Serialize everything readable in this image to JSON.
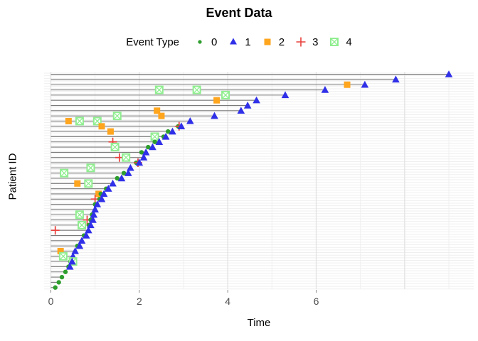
{
  "title": "Event Data",
  "legend": {
    "title": "Event Type",
    "items": [
      {
        "label": "0",
        "marker": "filled-circle"
      },
      {
        "label": "1",
        "marker": "filled-triangle"
      },
      {
        "label": "2",
        "marker": "filled-square"
      },
      {
        "label": "3",
        "marker": "plus-cross"
      },
      {
        "label": "4",
        "marker": "crossed-open-square"
      }
    ]
  },
  "chart_data": {
    "type": "scatter",
    "title": "Event Data",
    "xlabel": "Time",
    "ylabel": "Patient ID",
    "x_ticks": [
      0,
      2,
      4,
      6
    ],
    "xlim": [
      -0.15,
      9.55
    ],
    "grid": "on",
    "legend_position": "top-center",
    "y_axis_tick_labels": "none",
    "description": "Swimmer plot: one horizontal gray segment per patient from time 0 to last event; rows sorted by follow-up time (longest on top). Terminal marker is event type 1 (blue triangle) except bottom rows ending with type 0 (green dot).",
    "colors": {
      "type0": "#2E9E2E",
      "type1": "#3030E8",
      "type2": "#FFA51E",
      "type3": "#E8413C",
      "type4": "#90EE90",
      "row_line": "#7a7a7a",
      "grid_major": "#E2E2E2",
      "grid_minor": "#EFEFEF",
      "axis_text": "#4d4d4d"
    },
    "patients": [
      {
        "end": 9.0,
        "end_type": 1,
        "events": []
      },
      {
        "end": 7.8,
        "end_type": 1,
        "events": []
      },
      {
        "end": 7.1,
        "end_type": 1,
        "events": [
          [
            2,
            6.7
          ]
        ]
      },
      {
        "end": 6.2,
        "end_type": 1,
        "events": [
          [
            4,
            2.45
          ],
          [
            4,
            3.3
          ]
        ]
      },
      {
        "end": 5.3,
        "end_type": 1,
        "events": [
          [
            4,
            3.95
          ]
        ]
      },
      {
        "end": 4.65,
        "end_type": 1,
        "events": [
          [
            2,
            3.75
          ]
        ]
      },
      {
        "end": 4.45,
        "end_type": 1,
        "events": []
      },
      {
        "end": 4.3,
        "end_type": 1,
        "events": [
          [
            2,
            2.4
          ]
        ]
      },
      {
        "end": 3.7,
        "end_type": 1,
        "events": [
          [
            4,
            1.5
          ],
          [
            2,
            2.5
          ]
        ]
      },
      {
        "end": 3.15,
        "end_type": 1,
        "events": [
          [
            2,
            0.4
          ],
          [
            4,
            0.65
          ],
          [
            4,
            1.05
          ]
        ]
      },
      {
        "end": 2.95,
        "end_type": 1,
        "events": [
          [
            2,
            1.15
          ],
          [
            0,
            2.88
          ],
          [
            3,
            2.9
          ]
        ]
      },
      {
        "end": 2.75,
        "end_type": 1,
        "events": [
          [
            2,
            1.35
          ],
          [
            0,
            2.65
          ]
        ]
      },
      {
        "end": 2.6,
        "end_type": 1,
        "events": [
          [
            4,
            2.35
          ],
          [
            0,
            2.55
          ]
        ]
      },
      {
        "end": 2.45,
        "end_type": 1,
        "events": [
          [
            3,
            1.4
          ],
          [
            0,
            2.35
          ]
        ]
      },
      {
        "end": 2.3,
        "end_type": 1,
        "events": [
          [
            4,
            1.45
          ],
          [
            0,
            2.2
          ]
        ]
      },
      {
        "end": 2.15,
        "end_type": 1,
        "events": [
          [
            0,
            2.05
          ]
        ]
      },
      {
        "end": 2.1,
        "end_type": 1,
        "events": [
          [
            3,
            1.55
          ],
          [
            4,
            1.7
          ]
        ]
      },
      {
        "end": 2.0,
        "end_type": 1,
        "events": [
          [
            0,
            1.93
          ],
          [
            3,
            1.97
          ]
        ]
      },
      {
        "end": 1.8,
        "end_type": 1,
        "events": [
          [
            4,
            0.9
          ]
        ]
      },
      {
        "end": 1.75,
        "end_type": 1,
        "events": [
          [
            4,
            0.3
          ],
          [
            0,
            1.65
          ]
        ]
      },
      {
        "end": 1.6,
        "end_type": 1,
        "events": [
          [
            0,
            1.5
          ]
        ]
      },
      {
        "end": 1.4,
        "end_type": 1,
        "events": [
          [
            2,
            0.6
          ],
          [
            4,
            0.85
          ]
        ]
      },
      {
        "end": 1.3,
        "end_type": 1,
        "events": [
          [
            0,
            1.25
          ]
        ]
      },
      {
        "end": 1.2,
        "end_type": 1,
        "events": [
          [
            2,
            1.08
          ],
          [
            0,
            1.13
          ]
        ]
      },
      {
        "end": 1.15,
        "end_type": 1,
        "events": [
          [
            3,
            1.0
          ],
          [
            0,
            1.1
          ]
        ]
      },
      {
        "end": 1.05,
        "end_type": 1,
        "events": [
          [
            0,
            1.0
          ]
        ]
      },
      {
        "end": 1.0,
        "end_type": 1,
        "events": []
      },
      {
        "end": 0.97,
        "end_type": 1,
        "events": [
          [
            4,
            0.65
          ],
          [
            0,
            0.93
          ]
        ]
      },
      {
        "end": 0.95,
        "end_type": 1,
        "events": [
          [
            3,
            0.82
          ],
          [
            0,
            0.9
          ]
        ]
      },
      {
        "end": 0.9,
        "end_type": 1,
        "events": [
          [
            4,
            0.7
          ],
          [
            0,
            0.86
          ]
        ]
      },
      {
        "end": 0.85,
        "end_type": 1,
        "events": [
          [
            3,
            0.1
          ]
        ]
      },
      {
        "end": 0.8,
        "end_type": 1,
        "events": [
          [
            0,
            0.75
          ]
        ]
      },
      {
        "end": 0.7,
        "end_type": 1,
        "events": []
      },
      {
        "end": 0.65,
        "end_type": 1,
        "events": [
          [
            0,
            0.6
          ]
        ]
      },
      {
        "end": 0.55,
        "end_type": 1,
        "events": [
          [
            2,
            0.22
          ]
        ]
      },
      {
        "end": 0.5,
        "end_type": 1,
        "events": [
          [
            4,
            0.28
          ]
        ]
      },
      {
        "end": 0.48,
        "end_type": 1,
        "events": [
          [
            0,
            0.44
          ],
          [
            4,
            0.5
          ]
        ]
      },
      {
        "end": 0.43,
        "end_type": 1,
        "events": [
          [
            0,
            0.4
          ]
        ]
      },
      {
        "end": 0.33,
        "end_type": 0,
        "events": []
      },
      {
        "end": 0.25,
        "end_type": 0,
        "events": []
      },
      {
        "end": 0.18,
        "end_type": 0,
        "events": []
      },
      {
        "end": 0.1,
        "end_type": 0,
        "events": []
      }
    ]
  }
}
